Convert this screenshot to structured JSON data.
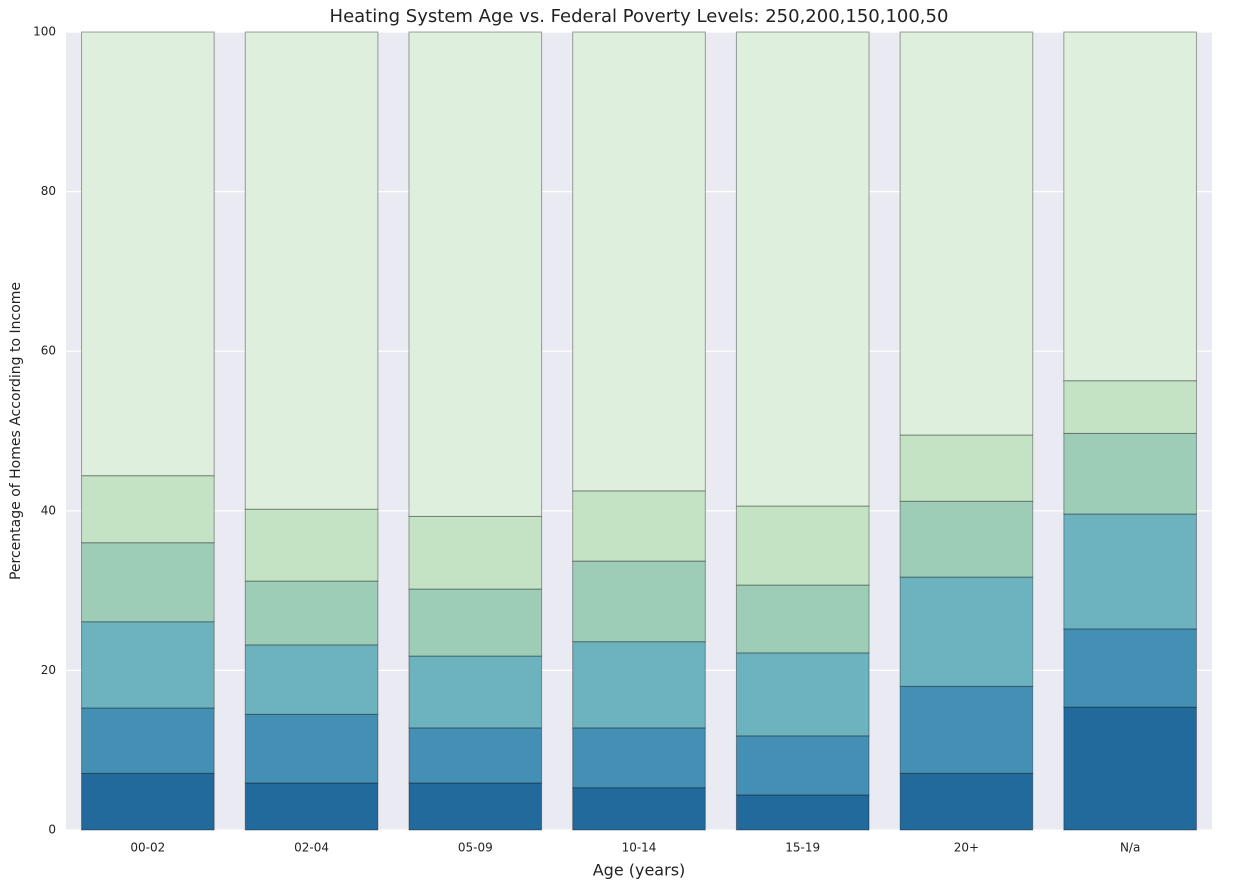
{
  "chart_data": {
    "type": "stacked_bar",
    "title": "Heating System Age vs. Federal Poverty Levels: 250,200,150,100,50",
    "x_label": "Age (years)",
    "y_label": "Percentage of Homes According to Income",
    "categories": [
      "00-02",
      "02-04",
      "05-09",
      "10-14",
      "15-19",
      "20+",
      "N/a"
    ],
    "series": [
      {
        "color": "#226a9c",
        "values": [
          7.1,
          5.9,
          5.9,
          5.3,
          4.4,
          7.1,
          15.4
        ]
      },
      {
        "color": "#4490b4",
        "values": [
          8.2,
          8.6,
          6.9,
          7.5,
          7.4,
          10.9,
          9.8
        ]
      },
      {
        "color": "#6cb3bf",
        "values": [
          10.8,
          8.7,
          9.0,
          10.8,
          10.4,
          13.7,
          14.4
        ]
      },
      {
        "color": "#9dcdb7",
        "values": [
          9.9,
          8.0,
          8.4,
          10.1,
          8.5,
          9.5,
          10.1
        ]
      },
      {
        "color": "#c4e3c5",
        "values": [
          8.4,
          9.0,
          9.1,
          8.8,
          9.9,
          8.3,
          6.6
        ]
      },
      {
        "color": "#dfefdd",
        "values": [
          55.6,
          59.8,
          60.7,
          57.5,
          59.4,
          50.5,
          43.7
        ]
      }
    ],
    "ylim": [
      0,
      100
    ],
    "yticks": [
      0,
      20,
      40,
      60,
      80,
      100
    ],
    "grid": true
  }
}
